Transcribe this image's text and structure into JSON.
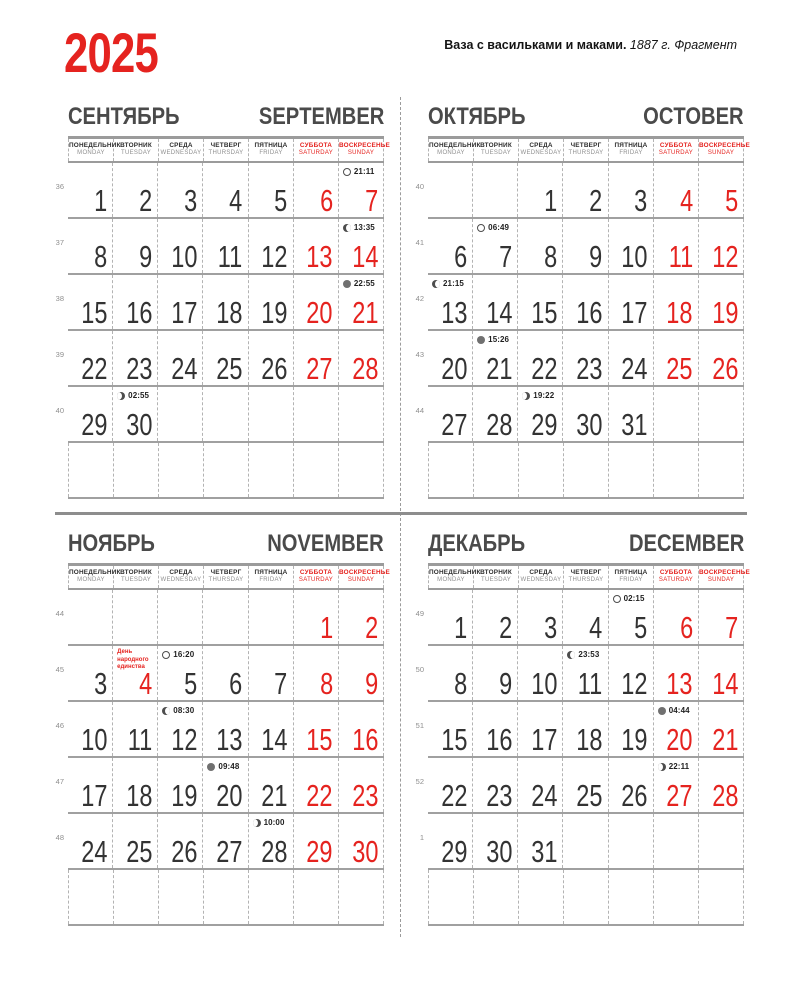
{
  "page": {
    "year": "2025",
    "artwork_title": "Ваза с васильками и маками.",
    "artwork_subtitle": " 1887 г. Фрагмент"
  },
  "colors": {
    "accent": "#e5231f",
    "text": "#333333",
    "muted": "#8f8f8f",
    "grid": "#9b9b9b"
  },
  "day_headers": [
    {
      "ru": "ПОНЕДЕЛЬНИК",
      "en": "MONDAY",
      "weekend": false
    },
    {
      "ru": "ВТОРНИК",
      "en": "TUESDAY",
      "weekend": false
    },
    {
      "ru": "СРЕДА",
      "en": "WEDNESDAY",
      "weekend": false
    },
    {
      "ru": "ЧЕТВЕРГ",
      "en": "THURSDAY",
      "weekend": false
    },
    {
      "ru": "ПЯТНИЦА",
      "en": "FRIDAY",
      "weekend": false
    },
    {
      "ru": "СУББОТА",
      "en": "SATURDAY",
      "weekend": true
    },
    {
      "ru": "ВОСКРЕСЕНЬЕ",
      "en": "SUNDAY",
      "weekend": true
    }
  ],
  "months": [
    {
      "id": "september",
      "ru": "СЕНТЯБРЬ",
      "en": "SEPTEMBER",
      "weeks": [
        {
          "week": "36",
          "days": [
            {
              "col": 0,
              "day": "1"
            },
            {
              "col": 1,
              "day": "2"
            },
            {
              "col": 2,
              "day": "3"
            },
            {
              "col": 3,
              "day": "4"
            },
            {
              "col": 4,
              "day": "5"
            },
            {
              "col": 5,
              "day": "6"
            },
            {
              "col": 6,
              "day": "7"
            }
          ],
          "moons": [
            {
              "col": 6,
              "phase": "full",
              "time": "21:11"
            }
          ]
        },
        {
          "week": "37",
          "days": [
            {
              "col": 0,
              "day": "8"
            },
            {
              "col": 1,
              "day": "9"
            },
            {
              "col": 2,
              "day": "10"
            },
            {
              "col": 3,
              "day": "11"
            },
            {
              "col": 4,
              "day": "12"
            },
            {
              "col": 5,
              "day": "13"
            },
            {
              "col": 6,
              "day": "14"
            }
          ],
          "moons": [
            {
              "col": 6,
              "phase": "last",
              "time": "13:35"
            }
          ]
        },
        {
          "week": "38",
          "days": [
            {
              "col": 0,
              "day": "15"
            },
            {
              "col": 1,
              "day": "16"
            },
            {
              "col": 2,
              "day": "17"
            },
            {
              "col": 3,
              "day": "18"
            },
            {
              "col": 4,
              "day": "19"
            },
            {
              "col": 5,
              "day": "20"
            },
            {
              "col": 6,
              "day": "21"
            }
          ],
          "moons": [
            {
              "col": 6,
              "phase": "new",
              "time": "22:55"
            }
          ]
        },
        {
          "week": "39",
          "days": [
            {
              "col": 0,
              "day": "22"
            },
            {
              "col": 1,
              "day": "23"
            },
            {
              "col": 2,
              "day": "24"
            },
            {
              "col": 3,
              "day": "25"
            },
            {
              "col": 4,
              "day": "26"
            },
            {
              "col": 5,
              "day": "27"
            },
            {
              "col": 6,
              "day": "28"
            }
          ],
          "moons": []
        },
        {
          "week": "40",
          "days": [
            {
              "col": 0,
              "day": "29"
            },
            {
              "col": 1,
              "day": "30"
            }
          ],
          "moons": [
            {
              "col": 1,
              "phase": "first",
              "time": "02:55"
            }
          ]
        },
        {
          "week": "",
          "days": [],
          "moons": []
        }
      ]
    },
    {
      "id": "october",
      "ru": "ОКТЯБРЬ",
      "en": "OCTOBER",
      "weeks": [
        {
          "week": "40",
          "days": [
            {
              "col": 2,
              "day": "1"
            },
            {
              "col": 3,
              "day": "2"
            },
            {
              "col": 4,
              "day": "3"
            },
            {
              "col": 5,
              "day": "4"
            },
            {
              "col": 6,
              "day": "5"
            }
          ],
          "moons": []
        },
        {
          "week": "41",
          "days": [
            {
              "col": 0,
              "day": "6"
            },
            {
              "col": 1,
              "day": "7"
            },
            {
              "col": 2,
              "day": "8"
            },
            {
              "col": 3,
              "day": "9"
            },
            {
              "col": 4,
              "day": "10"
            },
            {
              "col": 5,
              "day": "11"
            },
            {
              "col": 6,
              "day": "12"
            }
          ],
          "moons": [
            {
              "col": 1,
              "phase": "full",
              "time": "06:49"
            }
          ]
        },
        {
          "week": "42",
          "days": [
            {
              "col": 0,
              "day": "13"
            },
            {
              "col": 1,
              "day": "14"
            },
            {
              "col": 2,
              "day": "15"
            },
            {
              "col": 3,
              "day": "16"
            },
            {
              "col": 4,
              "day": "17"
            },
            {
              "col": 5,
              "day": "18"
            },
            {
              "col": 6,
              "day": "19"
            }
          ],
          "moons": [
            {
              "col": 0,
              "phase": "last",
              "time": "21:15"
            }
          ]
        },
        {
          "week": "43",
          "days": [
            {
              "col": 0,
              "day": "20"
            },
            {
              "col": 1,
              "day": "21"
            },
            {
              "col": 2,
              "day": "22"
            },
            {
              "col": 3,
              "day": "23"
            },
            {
              "col": 4,
              "day": "24"
            },
            {
              "col": 5,
              "day": "25"
            },
            {
              "col": 6,
              "day": "26"
            }
          ],
          "moons": [
            {
              "col": 1,
              "phase": "new",
              "time": "15:26"
            }
          ]
        },
        {
          "week": "44",
          "days": [
            {
              "col": 0,
              "day": "27"
            },
            {
              "col": 1,
              "day": "28"
            },
            {
              "col": 2,
              "day": "29"
            },
            {
              "col": 3,
              "day": "30"
            },
            {
              "col": 4,
              "day": "31"
            }
          ],
          "moons": [
            {
              "col": 2,
              "phase": "first",
              "time": "19:22"
            }
          ]
        },
        {
          "week": "",
          "days": [],
          "moons": []
        }
      ]
    },
    {
      "id": "november",
      "ru": "НОЯБРЬ",
      "en": "NOVEMBER",
      "weeks": [
        {
          "week": "44",
          "days": [
            {
              "col": 5,
              "day": "1"
            },
            {
              "col": 6,
              "day": "2"
            }
          ],
          "moons": []
        },
        {
          "week": "45",
          "days": [
            {
              "col": 0,
              "day": "3"
            },
            {
              "col": 1,
              "day": "4",
              "red": true
            },
            {
              "col": 2,
              "day": "5"
            },
            {
              "col": 3,
              "day": "6"
            },
            {
              "col": 4,
              "day": "7"
            },
            {
              "col": 5,
              "day": "8"
            },
            {
              "col": 6,
              "day": "9"
            }
          ],
          "moons": [
            {
              "col": 2,
              "phase": "full",
              "time": "16:20"
            }
          ],
          "holiday": {
            "col": 1,
            "lines": [
              "День",
              "народного",
              "единства"
            ]
          }
        },
        {
          "week": "46",
          "days": [
            {
              "col": 0,
              "day": "10"
            },
            {
              "col": 1,
              "day": "11"
            },
            {
              "col": 2,
              "day": "12"
            },
            {
              "col": 3,
              "day": "13"
            },
            {
              "col": 4,
              "day": "14"
            },
            {
              "col": 5,
              "day": "15"
            },
            {
              "col": 6,
              "day": "16"
            }
          ],
          "moons": [
            {
              "col": 2,
              "phase": "last",
              "time": "08:30"
            }
          ]
        },
        {
          "week": "47",
          "days": [
            {
              "col": 0,
              "day": "17"
            },
            {
              "col": 1,
              "day": "18"
            },
            {
              "col": 2,
              "day": "19"
            },
            {
              "col": 3,
              "day": "20"
            },
            {
              "col": 4,
              "day": "21"
            },
            {
              "col": 5,
              "day": "22"
            },
            {
              "col": 6,
              "day": "23"
            }
          ],
          "moons": [
            {
              "col": 3,
              "phase": "new",
              "time": "09:48"
            }
          ]
        },
        {
          "week": "48",
          "days": [
            {
              "col": 0,
              "day": "24"
            },
            {
              "col": 1,
              "day": "25"
            },
            {
              "col": 2,
              "day": "26"
            },
            {
              "col": 3,
              "day": "27"
            },
            {
              "col": 4,
              "day": "28"
            },
            {
              "col": 5,
              "day": "29"
            },
            {
              "col": 6,
              "day": "30"
            }
          ],
          "moons": [
            {
              "col": 4,
              "phase": "first",
              "time": "10:00"
            }
          ]
        },
        {
          "week": "",
          "days": [],
          "moons": []
        }
      ]
    },
    {
      "id": "december",
      "ru": "ДЕКАБРЬ",
      "en": "DECEMBER",
      "weeks": [
        {
          "week": "49",
          "days": [
            {
              "col": 0,
              "day": "1"
            },
            {
              "col": 1,
              "day": "2"
            },
            {
              "col": 2,
              "day": "3"
            },
            {
              "col": 3,
              "day": "4"
            },
            {
              "col": 4,
              "day": "5"
            },
            {
              "col": 5,
              "day": "6"
            },
            {
              "col": 6,
              "day": "7"
            }
          ],
          "moons": [
            {
              "col": 4,
              "phase": "full",
              "time": "02:15"
            }
          ]
        },
        {
          "week": "50",
          "days": [
            {
              "col": 0,
              "day": "8"
            },
            {
              "col": 1,
              "day": "9"
            },
            {
              "col": 2,
              "day": "10"
            },
            {
              "col": 3,
              "day": "11"
            },
            {
              "col": 4,
              "day": "12"
            },
            {
              "col": 5,
              "day": "13"
            },
            {
              "col": 6,
              "day": "14"
            }
          ],
          "moons": [
            {
              "col": 3,
              "phase": "last",
              "time": "23:53"
            }
          ]
        },
        {
          "week": "51",
          "days": [
            {
              "col": 0,
              "day": "15"
            },
            {
              "col": 1,
              "day": "16"
            },
            {
              "col": 2,
              "day": "17"
            },
            {
              "col": 3,
              "day": "18"
            },
            {
              "col": 4,
              "day": "19"
            },
            {
              "col": 5,
              "day": "20"
            },
            {
              "col": 6,
              "day": "21"
            }
          ],
          "moons": [
            {
              "col": 5,
              "phase": "new",
              "time": "04:44"
            }
          ]
        },
        {
          "week": "52",
          "days": [
            {
              "col": 0,
              "day": "22"
            },
            {
              "col": 1,
              "day": "23"
            },
            {
              "col": 2,
              "day": "24"
            },
            {
              "col": 3,
              "day": "25"
            },
            {
              "col": 4,
              "day": "26"
            },
            {
              "col": 5,
              "day": "27"
            },
            {
              "col": 6,
              "day": "28"
            }
          ],
          "moons": [
            {
              "col": 5,
              "phase": "first",
              "time": "22:11"
            }
          ]
        },
        {
          "week": "1",
          "days": [
            {
              "col": 0,
              "day": "29"
            },
            {
              "col": 1,
              "day": "30"
            },
            {
              "col": 2,
              "day": "31"
            }
          ],
          "moons": []
        },
        {
          "week": "",
          "days": [],
          "moons": []
        }
      ]
    }
  ]
}
